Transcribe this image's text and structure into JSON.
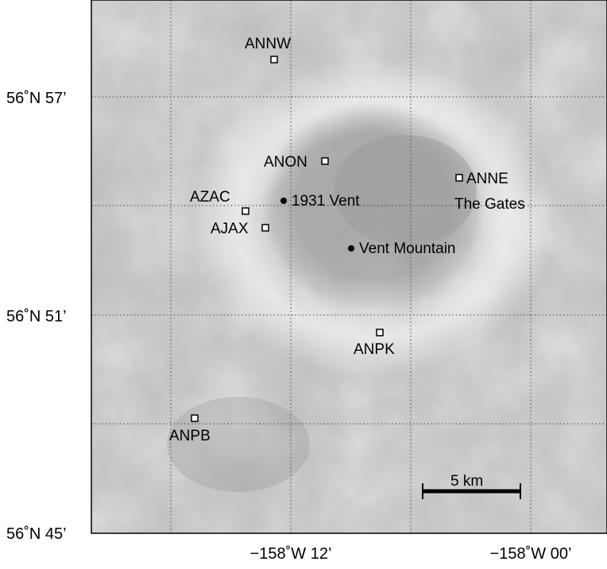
{
  "map": {
    "stations": [
      {
        "name": "ANNW"
      },
      {
        "name": "ANON"
      },
      {
        "name": "ANNE"
      },
      {
        "name": "AZAC"
      },
      {
        "name": "AJAX"
      },
      {
        "name": "ANPK"
      },
      {
        "name": "ANPB"
      }
    ],
    "vents": [
      {
        "name": "1931 Vent"
      },
      {
        "name": "Vent Mountain"
      }
    ],
    "place_label": "The Gates",
    "scale_bar": {
      "label": "5 km"
    },
    "lat_ticks": [
      {
        "label": "56˚N 57’"
      },
      {
        "label": "56˚N 51’"
      },
      {
        "label": "56˚N 45’"
      }
    ],
    "lon_ticks": [
      {
        "label": "−158˚W 12’"
      },
      {
        "label": "−158˚W 00’"
      }
    ]
  }
}
